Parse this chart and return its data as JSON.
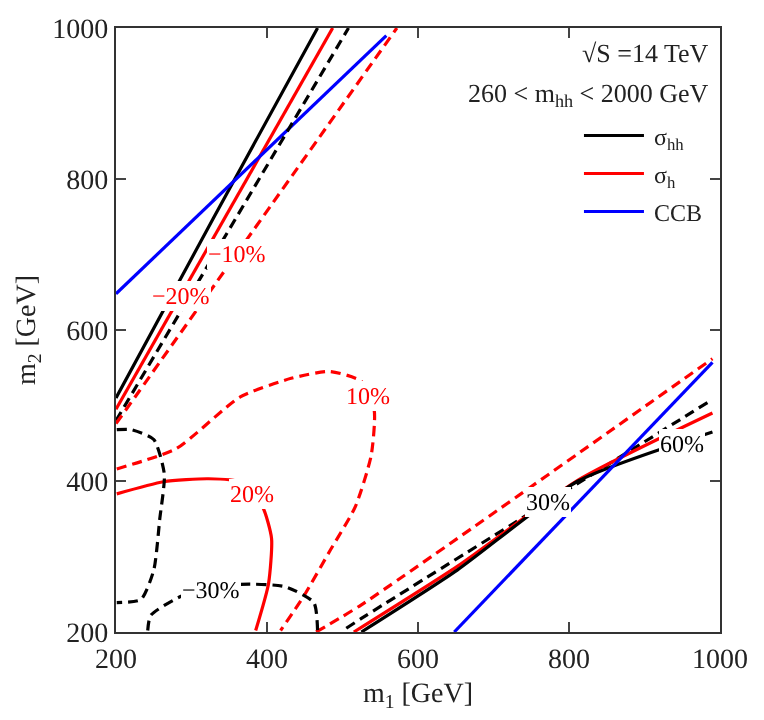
{
  "chart_data": {
    "type": "line",
    "xlabel": "m$_{1}$ [GeV]",
    "ylabel": "m$_{2}$ [GeV]",
    "xlim": [
      200,
      1000
    ],
    "ylim": [
      200,
      1000
    ],
    "xticks": [
      200,
      400,
      600,
      800,
      1000
    ],
    "yticks": [
      200,
      400,
      600,
      800,
      1000
    ],
    "grid": false,
    "legend": "top right",
    "marker": "none",
    "series": [
      {
        "name": "σ$_{hh}$",
        "color": "#000000",
        "line_style": "solid",
        "x": [
          200,
          330,
          467
        ],
        "values": [
          510,
          750,
          1000
        ]
      },
      {
        "name": "σ$_{h}$",
        "color": "#ff0000",
        "line_style": "solid",
        "x": [
          200,
          487
        ],
        "values": [
          495,
          1000
        ]
      },
      {
        "name": "CCB",
        "color": "#0000ff",
        "line_style": "solid",
        "x": [
          200,
          558
        ],
        "values": [
          648,
          990
        ]
      },
      {
        "color": "#000000",
        "line_style": "dashed",
        "x": [
          200,
          508
        ],
        "values": [
          480,
          1000
        ]
      },
      {
        "color": "#ff0000",
        "line_style": "dashed",
        "x": [
          200,
          225,
          572
        ],
        "values": [
          476,
          511,
          1000
        ]
      },
      {
        "color": "#ff0000",
        "line_style": "dashed",
        "x": [
          465,
          525,
          990
        ],
        "values": [
          200,
          236,
          562
        ]
      },
      {
        "color": "#000000",
        "line_style": "dashed",
        "x": [
          505,
          525,
          990
        ],
        "values": [
          205,
          218,
          508
        ]
      },
      {
        "color": "#ff0000",
        "line_style": "solid",
        "x": [
          515,
          652,
          812,
          990
        ],
        "values": [
          200,
          287,
          401,
          490
        ]
      },
      {
        "color": "#000000",
        "line_style": "solid",
        "x": [
          525,
          652,
          812,
          990
        ],
        "values": [
          200,
          282,
          400,
          465
        ]
      },
      {
        "color": "#0000ff",
        "line_style": "solid",
        "x": [
          648,
          990
        ],
        "values": [
          200,
          557
        ]
      },
      {
        "color": "#ff0000",
        "line_style": "dashed",
        "x": [
          201,
          280,
          364,
          432,
          483,
          525,
          542,
          538,
          517,
          483,
          449,
          418
        ],
        "values": [
          416,
          443,
          511,
          536,
          545,
          532,
          494,
          434,
          366,
          307,
          248,
          202
        ]
      },
      {
        "color": "#ff0000",
        "line_style": "solid",
        "x": [
          201,
          263,
          322,
          364,
          394,
          406,
          402,
          385
        ],
        "values": [
          383,
          399,
          403,
          399,
          366,
          324,
          264,
          202
        ]
      },
      {
        "color": "#000000",
        "line_style": "dashed",
        "x": [
          201,
          220,
          250,
          264,
          258,
          250,
          233,
          201
        ],
        "values": [
          468,
          468,
          455,
          409,
          350,
          282,
          243,
          239
        ]
      },
      {
        "color": "#000000",
        "line_style": "dashed",
        "x": [
          242,
          246,
          288,
          364,
          424,
          462,
          467
        ],
        "values": [
          202,
          222,
          248,
          263,
          260,
          239,
          202
        ]
      }
    ],
    "annotations": [
      "√S =14 TeV",
      "260 < m$_{hh}$ < 2000 GeV",
      {
        "text": "−20%",
        "x": 285,
        "y": 645
      },
      {
        "text": "−10%",
        "x": 359,
        "y": 700
      },
      {
        "text": "10%",
        "x": 533.5,
        "y": 513
      },
      {
        "text": "20%",
        "x": 379,
        "y": 382.5
      },
      {
        "text": "−30%",
        "x": 326,
        "y": 255.5
      },
      {
        "text": "30%",
        "x": 772,
        "y": 372
      },
      {
        "text": "60%",
        "x": 949,
        "y": 450
      }
    ]
  }
}
